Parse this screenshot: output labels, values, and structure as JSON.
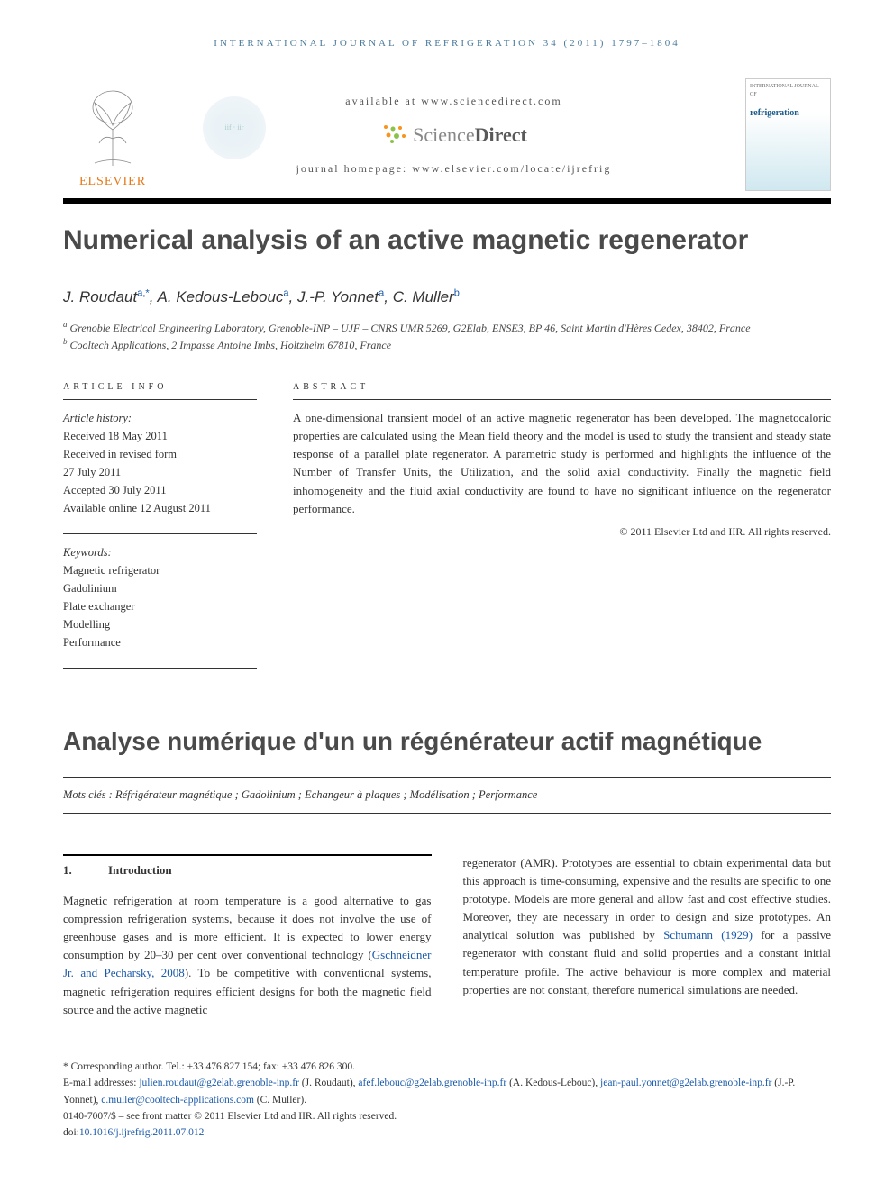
{
  "running_head": "international journal of refrigeration 34 (2011) 1797–1804",
  "header": {
    "elsevier": "ELSEVIER",
    "available": "available at www.sciencedirect.com",
    "sd_brand_a": "Science",
    "sd_brand_b": "Direct",
    "journal_home": "journal homepage: www.elsevier.com/locate/ijrefrig",
    "iif": "iif · iir",
    "iif_url": "www.iifiir.org",
    "cover_small": "INTERNATIONAL JOURNAL OF",
    "cover_title": "refrigeration"
  },
  "title": "Numerical analysis of an active magnetic regenerator",
  "authors_html": "J. Roudaut|a,*|, A. Kedous-Lebouc|a|, J.-P. Yonnet|a|, C. Muller|b|",
  "authors": [
    {
      "name": "J. Roudaut",
      "sup": "a,*"
    },
    {
      "name": "A. Kedous-Lebouc",
      "sup": "a"
    },
    {
      "name": "J.-P. Yonnet",
      "sup": "a"
    },
    {
      "name": "C. Muller",
      "sup": "b"
    }
  ],
  "affiliations": [
    {
      "sup": "a",
      "text": "Grenoble Electrical Engineering Laboratory, Grenoble-INP – UJF – CNRS UMR 5269, G2Elab, ENSE3, BP 46, Saint Martin d'Hères Cedex, 38402, France"
    },
    {
      "sup": "b",
      "text": "Cooltech Applications, 2 Impasse Antoine Imbs, Holtzheim 67810, France"
    }
  ],
  "article_info": {
    "head": "article info",
    "history_label": "Article history:",
    "history": [
      "Received 18 May 2011",
      "Received in revised form",
      "27 July 2011",
      "Accepted 30 July 2011",
      "Available online 12 August 2011"
    ],
    "keywords_label": "Keywords:",
    "keywords": [
      "Magnetic refrigerator",
      "Gadolinium",
      "Plate exchanger",
      "Modelling",
      "Performance"
    ]
  },
  "abstract": {
    "head": "abstract",
    "text": "A one-dimensional transient model of an active magnetic regenerator has been developed. The magnetocaloric properties are calculated using the Mean field theory and the model is used to study the transient and steady state response of a parallel plate regenerator. A parametric study is performed and highlights the influence of the Number of Transfer Units, the Utilization, and the solid axial conductivity. Finally the magnetic field inhomogeneity and the fluid axial conductivity are found to have no significant influence on the regenerator performance.",
    "copyright": "© 2011 Elsevier Ltd and IIR. All rights reserved."
  },
  "french": {
    "title": "Analyse numérique d'un un régénérateur actif magnétique",
    "mots": "Mots clés : Réfrigérateur magnétique ; Gadolinium ; Echangeur à plaques ; Modélisation ; Performance"
  },
  "body": {
    "sec_num": "1.",
    "sec_title": "Introduction",
    "col1": "Magnetic refrigeration at room temperature is a good alternative to gas compression refrigeration systems, because it does not involve the use of greenhouse gases and is more efficient. It is expected to lower energy consumption by 20–30 per cent over conventional technology (",
    "col1_link": "Gschneidner Jr. and Pecharsky, 2008",
    "col1_b": "). To be competitive with conventional systems, magnetic refrigeration requires efficient designs for both the magnetic field source and the active magnetic",
    "col2_a": "regenerator (AMR). Prototypes are essential to obtain experimental data but this approach is time-consuming, expensive and the results are specific to one prototype. Models are more general and allow fast and cost effective studies. Moreover, they are necessary in order to design and size prototypes. An analytical solution was published by ",
    "col2_link": "Schumann (1929)",
    "col2_b": " for a passive regenerator with constant fluid and solid properties and a constant initial temperature profile. The active behaviour is more complex and material properties are not constant, therefore numerical simulations are needed."
  },
  "footnotes": {
    "corr": "* Corresponding author. Tel.: +33 476 827 154; fax: +33 476 826 300.",
    "emails_label": "E-mail addresses: ",
    "emails": [
      {
        "addr": "julien.roudaut@g2elab.grenoble-inp.fr",
        "who": "(J. Roudaut)"
      },
      {
        "addr": "afef.lebouc@g2elab.grenoble-inp.fr",
        "who": "(A. Kedous-Lebouc)"
      },
      {
        "addr": "jean-paul.yonnet@g2elab.grenoble-inp.fr",
        "who": "(J.-P. Yonnet)"
      },
      {
        "addr": "c.muller@cooltech-applications.com",
        "who": "(C. Muller)"
      }
    ],
    "issn": "0140-7007/$ – see front matter © 2011 Elsevier Ltd and IIR. All rights reserved.",
    "doi_label": "doi:",
    "doi": "10.1016/j.ijrefrig.2011.07.012"
  },
  "colors": {
    "link": "#1a5aaa",
    "elsevier": "#e67817",
    "head_blue": "#4a7a9a",
    "title_gray": "#4a4a4a",
    "sd_orange": "#f7941e",
    "sd_green": "#8bc34a"
  }
}
